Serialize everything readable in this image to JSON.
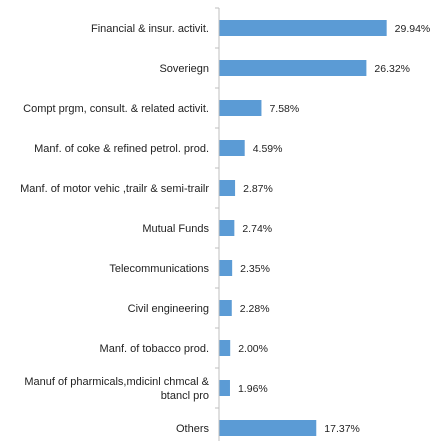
{
  "chart_data": {
    "type": "bar",
    "orientation": "horizontal",
    "categories": [
      "Financial & insur. activit.",
      "Soveriegn",
      "Compt prgm, consult. & related activit.",
      "Manf. of coke & refined petrol. prod.",
      "Manf. of motor vehic ,trailr & semi-trailr",
      "Mutual Funds",
      "Telecommunications",
      "Civil engineering",
      "Manf. of tobacco prod.",
      "Manuf of pharmicals,mdicinl chmcal & btancl pro",
      "Others"
    ],
    "values": [
      29.94,
      26.32,
      7.58,
      4.59,
      2.87,
      2.74,
      2.35,
      2.28,
      2.0,
      1.96,
      17.37
    ],
    "value_labels": [
      "29.94%",
      "26.32%",
      "7.58%",
      "4.59%",
      "2.87%",
      "2.74%",
      "2.35%",
      "2.28%",
      "2.00%",
      "1.96%",
      "17.37%"
    ],
    "bar_color": "#5b9bd5",
    "axis_color": "#bfbfbf",
    "xlim": [
      0,
      30
    ],
    "grid": false,
    "legend": false
  }
}
